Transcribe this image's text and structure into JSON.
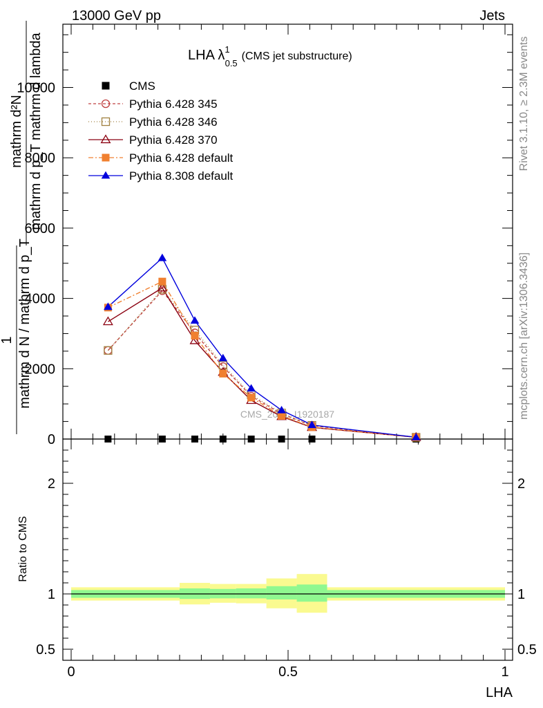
{
  "header": {
    "energy": "13000 GeV pp",
    "process": "Jets"
  },
  "side_labels": {
    "rivet": "Rivet 3.1.10, ≥ 2.3M events",
    "mcplots": "mcplots.cern.ch [arXiv:1306.3436]"
  },
  "watermark": "CMS_2021_I1920187",
  "chart_data": [
    {
      "type": "line",
      "title": "LHA λ",
      "title_sup": "1",
      "title_sub": "0.5",
      "title_suffix": "(CMS jet substructure)",
      "ylabel_lines": [
        "mathrm d²N",
        "mathrm d p_T mathrm d lambda"
      ],
      "ylabel_prefix": "1",
      "ylabel_denominator": "mathrm d N / mathrm d p_T",
      "ylim": [
        0,
        11800
      ],
      "xlim": [
        -0.02,
        1.02
      ],
      "y_ticks": [
        0,
        2000,
        4000,
        6000,
        8000,
        10000
      ],
      "y_tick_labels": [
        "0",
        "2000",
        "4000",
        "6000",
        "8000",
        "10000"
      ],
      "grid": false,
      "legend_position": "top-left",
      "x": [
        0.085,
        0.21,
        0.285,
        0.35,
        0.415,
        0.485,
        0.555,
        0.795
      ],
      "series": [
        {
          "name": "CMS",
          "color": "#000000",
          "marker": "square-filled",
          "dash": "none",
          "values": [
            0,
            0,
            0,
            0,
            0,
            0,
            0,
            0
          ]
        },
        {
          "name": "Pythia 6.428 345",
          "color": "#c04040",
          "marker": "circle-open",
          "dash": "4,3",
          "values": [
            2520,
            4220,
            3020,
            2060,
            1220,
            720,
            380,
            50
          ]
        },
        {
          "name": "Pythia 6.428 346",
          "color": "#a08040",
          "marker": "square-open",
          "dash": "1,3",
          "values": [
            2520,
            4260,
            3100,
            2100,
            1260,
            740,
            390,
            50
          ]
        },
        {
          "name": "Pythia 6.428 370",
          "color": "#8b0010",
          "marker": "triangle-open",
          "dash": "none",
          "values": [
            3340,
            4300,
            2800,
            1900,
            1100,
            640,
            330,
            50
          ]
        },
        {
          "name": "Pythia 6.428 default",
          "color": "#f08030",
          "marker": "square-filled",
          "dash": "7,3,2,3",
          "values": [
            3740,
            4480,
            2940,
            1860,
            1180,
            660,
            340,
            50
          ]
        },
        {
          "name": "Pythia 8.308 default",
          "color": "#0000dd",
          "marker": "triangle-filled",
          "dash": "none",
          "values": [
            3760,
            5150,
            3370,
            2300,
            1440,
            820,
            400,
            50
          ]
        }
      ]
    },
    {
      "type": "area",
      "ylabel": "Ratio to CMS",
      "xlabel": "LHA",
      "ylim": [
        0.4,
        2.4
      ],
      "y_ticks": [
        0.5,
        1,
        2
      ],
      "y_tick_labels": [
        "0.5",
        "1",
        "2"
      ],
      "x_ticks": [
        0,
        0.5,
        1
      ],
      "x_tick_labels": [
        "0",
        "0.5",
        "1"
      ],
      "reference_line": 1,
      "bins": [
        {
          "lo": 0.0,
          "hi": 0.25,
          "inner": [
            0.965,
            1.035
          ],
          "outer": [
            0.94,
            1.06
          ]
        },
        {
          "lo": 0.25,
          "hi": 0.32,
          "inner": [
            0.955,
            1.05
          ],
          "outer": [
            0.905,
            1.1
          ]
        },
        {
          "lo": 0.32,
          "hi": 0.38,
          "inner": [
            0.96,
            1.045
          ],
          "outer": [
            0.92,
            1.09
          ]
        },
        {
          "lo": 0.38,
          "hi": 0.45,
          "inner": [
            0.96,
            1.05
          ],
          "outer": [
            0.915,
            1.09
          ]
        },
        {
          "lo": 0.45,
          "hi": 0.52,
          "inner": [
            0.95,
            1.07
          ],
          "outer": [
            0.87,
            1.14
          ]
        },
        {
          "lo": 0.52,
          "hi": 0.59,
          "inner": [
            0.93,
            1.085
          ],
          "outer": [
            0.83,
            1.18
          ]
        },
        {
          "lo": 0.59,
          "hi": 1.0,
          "inner": [
            0.965,
            1.035
          ],
          "outer": [
            0.94,
            1.06
          ]
        }
      ],
      "inner_color": "#90f890",
      "outer_color": "#fafa90"
    }
  ]
}
